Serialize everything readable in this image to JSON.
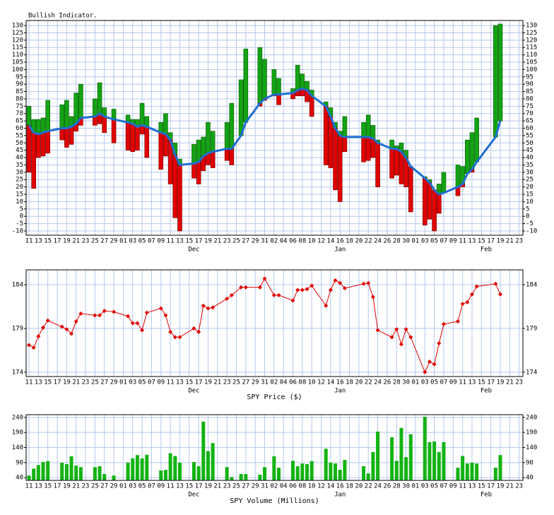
{
  "chart_data": [
    {
      "type": "indicator",
      "title": "Bullish Indicator.",
      "x": [
        0,
        1,
        2,
        3,
        4,
        7,
        8,
        9,
        10,
        11,
        14,
        15,
        16,
        18,
        21,
        22,
        23,
        24,
        25,
        28,
        29,
        30,
        31,
        32,
        35,
        36,
        37,
        38,
        39,
        42,
        43,
        45,
        46,
        49,
        50,
        52,
        53,
        56,
        57,
        58,
        59,
        60,
        63,
        64,
        65,
        66,
        67,
        71,
        72,
        73,
        74,
        77,
        78,
        79,
        80,
        81,
        84,
        85,
        86,
        87,
        88,
        91,
        92,
        93,
        94,
        95,
        99,
        100
      ],
      "high": [
        75,
        66,
        66,
        67,
        79,
        76,
        79,
        68,
        84,
        90,
        80,
        91,
        74,
        73,
        69,
        66,
        66,
        77,
        68,
        64,
        70,
        57,
        50,
        39,
        49,
        52,
        54,
        64,
        58,
        64,
        77,
        93,
        114,
        115,
        107,
        100,
        94,
        87,
        103,
        97,
        92,
        86,
        78,
        74,
        64,
        58,
        68,
        64,
        69,
        62,
        52,
        52,
        48,
        50,
        45,
        33,
        27,
        25,
        18,
        22,
        30,
        35,
        34,
        52,
        57,
        67,
        130,
        131
      ],
      "low": [
        30,
        19,
        40,
        41,
        43,
        52,
        47,
        49,
        58,
        62,
        62,
        63,
        57,
        50,
        45,
        44,
        45,
        56,
        40,
        32,
        41,
        22,
        -1,
        -10,
        26,
        22,
        31,
        35,
        33,
        38,
        35,
        55,
        64,
        75,
        79,
        82,
        76,
        80,
        82,
        82,
        78,
        68,
        35,
        33,
        18,
        10,
        44,
        37,
        38,
        40,
        20,
        26,
        28,
        22,
        20,
        3,
        -6,
        -2,
        -10,
        2,
        16,
        14,
        20,
        29,
        30,
        37,
        54,
        65
      ],
      "line": [
        62,
        57,
        56,
        57,
        58,
        60,
        60,
        61,
        63,
        67,
        68,
        70,
        68,
        66,
        64,
        63,
        61,
        62,
        61,
        57,
        56,
        52,
        42,
        35,
        36,
        37,
        41,
        43,
        44,
        46,
        46,
        55,
        64,
        77,
        80,
        83,
        83,
        84,
        86,
        87,
        86,
        82,
        75,
        68,
        60,
        55,
        54,
        54,
        54,
        53,
        50,
        46,
        46,
        44,
        40,
        34,
        26,
        23,
        18,
        15,
        16,
        20,
        22,
        29,
        32,
        37,
        54,
        65
      ],
      "up_color": "#13a313",
      "down_color": "#e00000",
      "line_color": "#1e6fd0",
      "xlim": [
        -0.6,
        104.8
      ],
      "xticks": [
        {
          "value": 0,
          "label": "11"
        },
        {
          "value": 2,
          "label": "13"
        },
        {
          "value": 4,
          "label": "15"
        },
        {
          "value": 6,
          "label": "17"
        },
        {
          "value": 8,
          "label": "19"
        },
        {
          "value": 10,
          "label": "21"
        },
        {
          "value": 12,
          "label": "23"
        },
        {
          "value": 14,
          "label": "25"
        },
        {
          "value": 16,
          "label": "27"
        },
        {
          "value": 18,
          "label": "29"
        },
        {
          "value": 20,
          "label": "01"
        },
        {
          "value": 22,
          "label": "03"
        },
        {
          "value": 24,
          "label": "05"
        },
        {
          "value": 26,
          "label": "07"
        },
        {
          "value": 28,
          "label": "09"
        },
        {
          "value": 30,
          "label": "11"
        },
        {
          "value": 32,
          "label": "13"
        },
        {
          "value": 34,
          "label": "15"
        },
        {
          "value": 36,
          "label": "17"
        },
        {
          "value": 38,
          "label": "19"
        },
        {
          "value": 40,
          "label": "21"
        },
        {
          "value": 42,
          "label": "23"
        },
        {
          "value": 44,
          "label": "25"
        },
        {
          "value": 46,
          "label": "27"
        },
        {
          "value": 48,
          "label": "29"
        },
        {
          "value": 50,
          "label": "31"
        },
        {
          "value": 52,
          "label": "02"
        },
        {
          "value": 54,
          "label": "04"
        },
        {
          "value": 56,
          "label": "06"
        },
        {
          "value": 58,
          "label": "08"
        },
        {
          "value": 60,
          "label": "10"
        },
        {
          "value": 62,
          "label": "12"
        },
        {
          "value": 64,
          "label": "14"
        },
        {
          "value": 66,
          "label": "16"
        },
        {
          "value": 68,
          "label": "18"
        },
        {
          "value": 70,
          "label": "20"
        },
        {
          "value": 72,
          "label": "22"
        },
        {
          "value": 74,
          "label": "24"
        },
        {
          "value": 76,
          "label": "26"
        },
        {
          "value": 78,
          "label": "28"
        },
        {
          "value": 80,
          "label": "30"
        },
        {
          "value": 82,
          "label": "01"
        },
        {
          "value": 84,
          "label": "03"
        },
        {
          "value": 86,
          "label": "05"
        },
        {
          "value": 88,
          "label": "07"
        },
        {
          "value": 90,
          "label": "09"
        },
        {
          "value": 92,
          "label": "11"
        },
        {
          "value": 94,
          "label": "13"
        },
        {
          "value": 96,
          "label": "15"
        },
        {
          "value": 98,
          "label": "17"
        },
        {
          "value": 100,
          "label": "19"
        },
        {
          "value": 102,
          "label": "21"
        },
        {
          "value": 104,
          "label": "23"
        }
      ],
      "months": [
        {
          "value": 35,
          "label": "Dec"
        },
        {
          "value": 66,
          "label": "Jan"
        },
        {
          "value": 97,
          "label": "Feb"
        }
      ],
      "ylim": [
        -12.9,
        133.4
      ],
      "yticks": [
        -10,
        -5,
        0,
        5,
        10,
        15,
        20,
        25,
        30,
        35,
        40,
        45,
        50,
        55,
        60,
        65,
        70,
        75,
        80,
        85,
        90,
        95,
        100,
        105,
        110,
        115,
        120,
        125,
        130
      ],
      "grid": true
    },
    {
      "type": "line",
      "xlabel": "SPY Price ($)",
      "x": [
        0,
        1,
        2,
        3,
        4,
        7,
        8,
        9,
        10,
        11,
        14,
        15,
        16,
        18,
        21,
        22,
        23,
        24,
        25,
        28,
        29,
        30,
        31,
        32,
        35,
        36,
        37,
        38,
        39,
        42,
        43,
        45,
        46,
        49,
        50,
        52,
        53,
        56,
        57,
        58,
        59,
        60,
        63,
        64,
        65,
        66,
        67,
        71,
        72,
        73,
        74,
        77,
        78,
        79,
        80,
        81,
        84,
        85,
        86,
        87,
        88,
        91,
        92,
        93,
        94,
        95,
        99,
        100
      ],
      "values": [
        177.1,
        176.8,
        178.1,
        179.1,
        179.9,
        179.2,
        178.9,
        178.4,
        179.8,
        180.7,
        180.5,
        180.5,
        181.0,
        180.9,
        180.4,
        179.6,
        179.6,
        178.8,
        180.8,
        181.3,
        180.5,
        178.6,
        178.0,
        178.0,
        179.0,
        178.6,
        181.6,
        181.3,
        181.4,
        182.4,
        182.8,
        183.7,
        183.7,
        183.7,
        184.7,
        182.8,
        182.8,
        182.2,
        183.4,
        183.4,
        183.5,
        183.9,
        181.6,
        183.4,
        184.5,
        184.2,
        183.6,
        184.1,
        184.2,
        182.6,
        178.8,
        178.0,
        178.9,
        177.2,
        178.9,
        178.0,
        174.0,
        175.2,
        174.9,
        177.3,
        179.5,
        179.8,
        181.8,
        182.0,
        182.9,
        183.8,
        184.1,
        182.9
      ],
      "color": "#e00000",
      "xlim": [
        -0.6,
        104.8
      ],
      "xticks": [
        {
          "value": 0,
          "label": "11"
        },
        {
          "value": 2,
          "label": "13"
        },
        {
          "value": 4,
          "label": "15"
        },
        {
          "value": 6,
          "label": "17"
        },
        {
          "value": 8,
          "label": "19"
        },
        {
          "value": 10,
          "label": "21"
        },
        {
          "value": 12,
          "label": "23"
        },
        {
          "value": 14,
          "label": "25"
        },
        {
          "value": 16,
          "label": "27"
        },
        {
          "value": 18,
          "label": "29"
        },
        {
          "value": 20,
          "label": "01"
        },
        {
          "value": 22,
          "label": "03"
        },
        {
          "value": 24,
          "label": "05"
        },
        {
          "value": 26,
          "label": "07"
        },
        {
          "value": 28,
          "label": "09"
        },
        {
          "value": 30,
          "label": "11"
        },
        {
          "value": 32,
          "label": "13"
        },
        {
          "value": 34,
          "label": "15"
        },
        {
          "value": 36,
          "label": "17"
        },
        {
          "value": 38,
          "label": "19"
        },
        {
          "value": 40,
          "label": "21"
        },
        {
          "value": 42,
          "label": "23"
        },
        {
          "value": 44,
          "label": "25"
        },
        {
          "value": 46,
          "label": "27"
        },
        {
          "value": 48,
          "label": "29"
        },
        {
          "value": 50,
          "label": "31"
        },
        {
          "value": 52,
          "label": "02"
        },
        {
          "value": 54,
          "label": "04"
        },
        {
          "value": 56,
          "label": "06"
        },
        {
          "value": 58,
          "label": "08"
        },
        {
          "value": 60,
          "label": "10"
        },
        {
          "value": 62,
          "label": "12"
        },
        {
          "value": 64,
          "label": "14"
        },
        {
          "value": 66,
          "label": "16"
        },
        {
          "value": 68,
          "label": "18"
        },
        {
          "value": 70,
          "label": "20"
        },
        {
          "value": 72,
          "label": "22"
        },
        {
          "value": 74,
          "label": "24"
        },
        {
          "value": 76,
          "label": "26"
        },
        {
          "value": 78,
          "label": "28"
        },
        {
          "value": 80,
          "label": "30"
        },
        {
          "value": 82,
          "label": "01"
        },
        {
          "value": 84,
          "label": "03"
        },
        {
          "value": 86,
          "label": "05"
        },
        {
          "value": 88,
          "label": "07"
        },
        {
          "value": 90,
          "label": "09"
        },
        {
          "value": 92,
          "label": "11"
        },
        {
          "value": 94,
          "label": "13"
        },
        {
          "value": 96,
          "label": "15"
        },
        {
          "value": 98,
          "label": "17"
        },
        {
          "value": 100,
          "label": "19"
        },
        {
          "value": 102,
          "label": "21"
        },
        {
          "value": 104,
          "label": "23"
        }
      ],
      "months": [
        {
          "value": 35,
          "label": "Dec"
        },
        {
          "value": 66,
          "label": "Jan"
        },
        {
          "value": 97,
          "label": "Feb"
        }
      ],
      "ylim": [
        173.5,
        185.7
      ],
      "yticks": [
        174,
        179,
        184
      ],
      "grid": true
    },
    {
      "type": "bar",
      "xlabel": "SPY Volume (Millions)",
      "x": [
        0,
        1,
        2,
        3,
        4,
        7,
        8,
        9,
        10,
        11,
        14,
        15,
        16,
        18,
        21,
        22,
        23,
        24,
        25,
        28,
        29,
        30,
        31,
        32,
        35,
        36,
        37,
        38,
        39,
        42,
        43,
        45,
        46,
        49,
        50,
        52,
        53,
        56,
        57,
        58,
        59,
        60,
        63,
        64,
        65,
        66,
        67,
        71,
        72,
        73,
        74,
        77,
        78,
        79,
        80,
        81,
        84,
        85,
        86,
        87,
        88,
        91,
        92,
        93,
        94,
        95,
        99,
        100
      ],
      "values": [
        47,
        70,
        82,
        92,
        95,
        90,
        85,
        111,
        80,
        75,
        75,
        78,
        52,
        47,
        90,
        104,
        115,
        104,
        116,
        64,
        66,
        121,
        112,
        90,
        92,
        78,
        226,
        128,
        155,
        75,
        42,
        52,
        52,
        50,
        75,
        111,
        73,
        96,
        78,
        87,
        85,
        95,
        136,
        90,
        87,
        66,
        99,
        78,
        54,
        125,
        193,
        174,
        96,
        205,
        108,
        184,
        242,
        158,
        160,
        125,
        158,
        73,
        112,
        87,
        90,
        87,
        73,
        115
      ],
      "color": "#13b313",
      "xlim": [
        -0.6,
        104.8
      ],
      "xticks": [
        {
          "value": 0,
          "label": "11"
        },
        {
          "value": 2,
          "label": "13"
        },
        {
          "value": 4,
          "label": "15"
        },
        {
          "value": 6,
          "label": "17"
        },
        {
          "value": 8,
          "label": "19"
        },
        {
          "value": 10,
          "label": "21"
        },
        {
          "value": 12,
          "label": "23"
        },
        {
          "value": 14,
          "label": "25"
        },
        {
          "value": 16,
          "label": "27"
        },
        {
          "value": 18,
          "label": "29"
        },
        {
          "value": 20,
          "label": "01"
        },
        {
          "value": 22,
          "label": "03"
        },
        {
          "value": 24,
          "label": "05"
        },
        {
          "value": 26,
          "label": "07"
        },
        {
          "value": 28,
          "label": "09"
        },
        {
          "value": 30,
          "label": "11"
        },
        {
          "value": 32,
          "label": "13"
        },
        {
          "value": 34,
          "label": "15"
        },
        {
          "value": 36,
          "label": "17"
        },
        {
          "value": 38,
          "label": "19"
        },
        {
          "value": 40,
          "label": "21"
        },
        {
          "value": 42,
          "label": "23"
        },
        {
          "value": 44,
          "label": "25"
        },
        {
          "value": 46,
          "label": "27"
        },
        {
          "value": 48,
          "label": "29"
        },
        {
          "value": 50,
          "label": "31"
        },
        {
          "value": 52,
          "label": "02"
        },
        {
          "value": 54,
          "label": "04"
        },
        {
          "value": 56,
          "label": "06"
        },
        {
          "value": 58,
          "label": "08"
        },
        {
          "value": 60,
          "label": "10"
        },
        {
          "value": 62,
          "label": "12"
        },
        {
          "value": 64,
          "label": "14"
        },
        {
          "value": 66,
          "label": "16"
        },
        {
          "value": 68,
          "label": "18"
        },
        {
          "value": 70,
          "label": "20"
        },
        {
          "value": 72,
          "label": "22"
        },
        {
          "value": 74,
          "label": "24"
        },
        {
          "value": 76,
          "label": "26"
        },
        {
          "value": 78,
          "label": "28"
        },
        {
          "value": 80,
          "label": "30"
        },
        {
          "value": 82,
          "label": "01"
        },
        {
          "value": 84,
          "label": "03"
        },
        {
          "value": 86,
          "label": "05"
        },
        {
          "value": 88,
          "label": "07"
        },
        {
          "value": 90,
          "label": "09"
        },
        {
          "value": 92,
          "label": "11"
        },
        {
          "value": 94,
          "label": "13"
        },
        {
          "value": 96,
          "label": "15"
        },
        {
          "value": 98,
          "label": "17"
        },
        {
          "value": 100,
          "label": "19"
        },
        {
          "value": 102,
          "label": "21"
        },
        {
          "value": 104,
          "label": "23"
        }
      ],
      "months": [
        {
          "value": 35,
          "label": "Dec"
        },
        {
          "value": 66,
          "label": "Jan"
        },
        {
          "value": 97,
          "label": "Feb"
        }
      ],
      "ylim": [
        31,
        249
      ],
      "yticks": [
        40,
        90,
        140,
        190,
        240
      ],
      "grid": true
    }
  ]
}
